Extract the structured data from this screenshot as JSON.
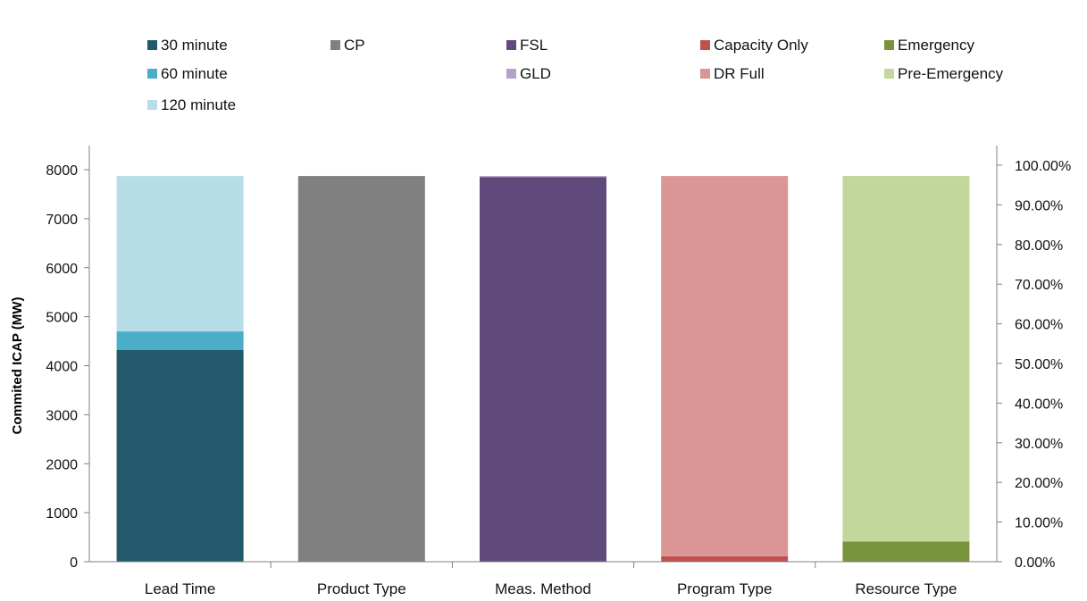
{
  "chart_data": {
    "type": "bar",
    "stacked": true,
    "categories": [
      "Lead Time",
      "Product Type",
      "Meas. Method",
      "Program Type",
      "Resource Type"
    ],
    "series": [
      {
        "name": "30 minute",
        "color": "#22596b",
        "values": [
          4320,
          0,
          0,
          0,
          0
        ]
      },
      {
        "name": "60 minute",
        "color": "#4aaec8",
        "values": [
          380,
          0,
          0,
          0,
          0
        ]
      },
      {
        "name": "120 minute",
        "color": "#b7dde8",
        "values": [
          3170,
          0,
          0,
          0,
          0
        ]
      },
      {
        "name": "CP",
        "color": "#808080",
        "values": [
          0,
          7870,
          0,
          0,
          0
        ]
      },
      {
        "name": "FSL",
        "color": "#604a7b",
        "values": [
          0,
          0,
          7850,
          0,
          0
        ]
      },
      {
        "name": "GLD",
        "color": "#b3a2c7",
        "values": [
          0,
          0,
          20,
          0,
          0
        ]
      },
      {
        "name": "Capacity Only",
        "color": "#c0504d",
        "values": [
          0,
          0,
          0,
          110,
          0
        ]
      },
      {
        "name": "DR Full",
        "color": "#d99694",
        "values": [
          0,
          0,
          0,
          7760,
          0
        ]
      },
      {
        "name": "Emergency",
        "color": "#77933c",
        "values": [
          0,
          0,
          0,
          0,
          410
        ]
      },
      {
        "name": "Pre-Emergency",
        "color": "#c3d69b",
        "values": [
          0,
          0,
          0,
          0,
          7460
        ]
      }
    ],
    "ylabel": "Commited ICAP (MW)",
    "ylim": [
      0,
      8000
    ],
    "yticks": [
      0,
      1000,
      2000,
      3000,
      4000,
      5000,
      6000,
      7000,
      8000
    ],
    "y2lim": [
      0,
      100
    ],
    "y2ticks": [
      "0.00%",
      "10.00%",
      "20.00%",
      "30.00%",
      "40.00%",
      "50.00%",
      "60.00%",
      "70.00%",
      "80.00%",
      "90.00%",
      "100.00%"
    ],
    "legend_placement": "top",
    "grid": false
  }
}
